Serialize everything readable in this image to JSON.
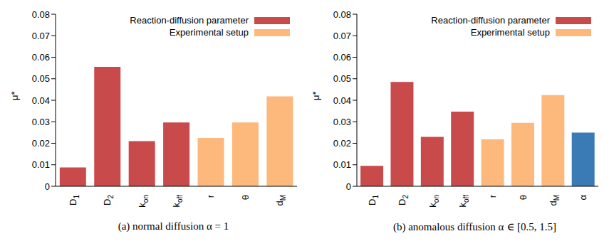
{
  "chart_data": [
    {
      "type": "bar",
      "title": "(a) normal diffusion α = 1",
      "y_label": "μ*",
      "categories": [
        "D1",
        "D2",
        "kon",
        "koff",
        "r",
        "θ",
        "dM"
      ],
      "series": [
        {
          "name": "Reaction-diffusion parameter",
          "color": "#c94a4a",
          "values": [
            0.0088,
            0.0555,
            0.021,
            0.0297,
            null,
            null,
            null
          ]
        },
        {
          "name": "Experimental setup",
          "color": "#fcb97b",
          "values": [
            null,
            null,
            null,
            null,
            0.0225,
            0.0297,
            0.0418
          ]
        }
      ],
      "ylim": [
        0,
        0.08
      ],
      "yticks": [
        0,
        0.01,
        0.02,
        0.03,
        0.04,
        0.05,
        0.06,
        0.07,
        0.08
      ],
      "grid": false,
      "legend": "top",
      "stacked": true
    },
    {
      "type": "bar",
      "title": "(b) anomalous diffusion α ∈ [0.5, 1.5]",
      "y_label": "μ*",
      "categories": [
        "D1",
        "D2",
        "kon",
        "koff",
        "r",
        "θ",
        "dM",
        "α"
      ],
      "series": [
        {
          "name": "Reaction-diffusion parameter",
          "color": "#c94a4a",
          "values": [
            0.0095,
            0.0485,
            0.023,
            0.0347,
            null,
            null,
            null,
            null
          ]
        },
        {
          "name": "Experimental setup",
          "color": "#fcb97b",
          "values": [
            null,
            null,
            null,
            null,
            0.0218,
            0.0295,
            0.0424,
            null
          ]
        },
        {
          "color": "#3b7bb5",
          "values": [
            null,
            null,
            null,
            null,
            null,
            null,
            null,
            0.025
          ]
        }
      ],
      "ylim": [
        0,
        0.08
      ],
      "yticks": [
        0,
        0.01,
        0.02,
        0.03,
        0.04,
        0.05,
        0.06,
        0.07,
        0.08
      ],
      "grid": false,
      "legend": "top",
      "stacked": true
    }
  ]
}
